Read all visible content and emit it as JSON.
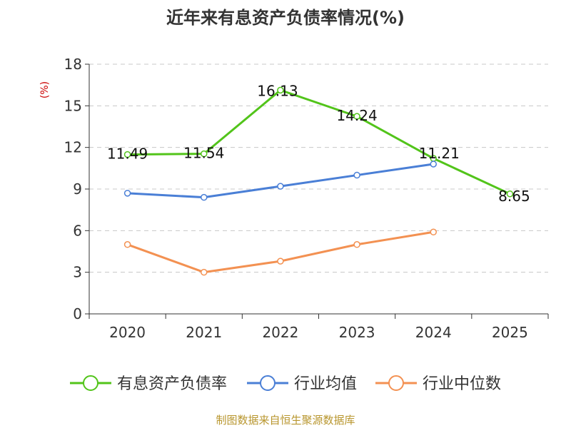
{
  "chart_data": {
    "type": "line",
    "title": "近年来有息资产负债率情况(%)",
    "ylabel": "(%)",
    "xlabel": "",
    "categories": [
      "2020",
      "2021",
      "2022",
      "2023",
      "2024",
      "2025"
    ],
    "yticks": [
      "0",
      "3",
      "6",
      "9",
      "12",
      "15",
      "18"
    ],
    "ylim": [
      0,
      18
    ],
    "grid": true,
    "legend": "bottom",
    "series": [
      {
        "name": "有息资产负债率",
        "color": "#52c41a",
        "values": [
          11.49,
          11.54,
          16.13,
          14.24,
          11.21,
          8.65
        ],
        "labels": [
          "11.49",
          "11.54",
          "16.13",
          "14.24",
          "11.21",
          "8.65"
        ]
      },
      {
        "name": "行业均值",
        "color": "#4a7fd6",
        "values": [
          8.7,
          8.4,
          9.2,
          10.0,
          10.8,
          null
        ]
      },
      {
        "name": "行业中位数",
        "color": "#f39152",
        "values": [
          5.0,
          3.0,
          3.8,
          5.0,
          5.9,
          null
        ]
      }
    ]
  },
  "source": "制图数据来自恒生聚源数据库"
}
